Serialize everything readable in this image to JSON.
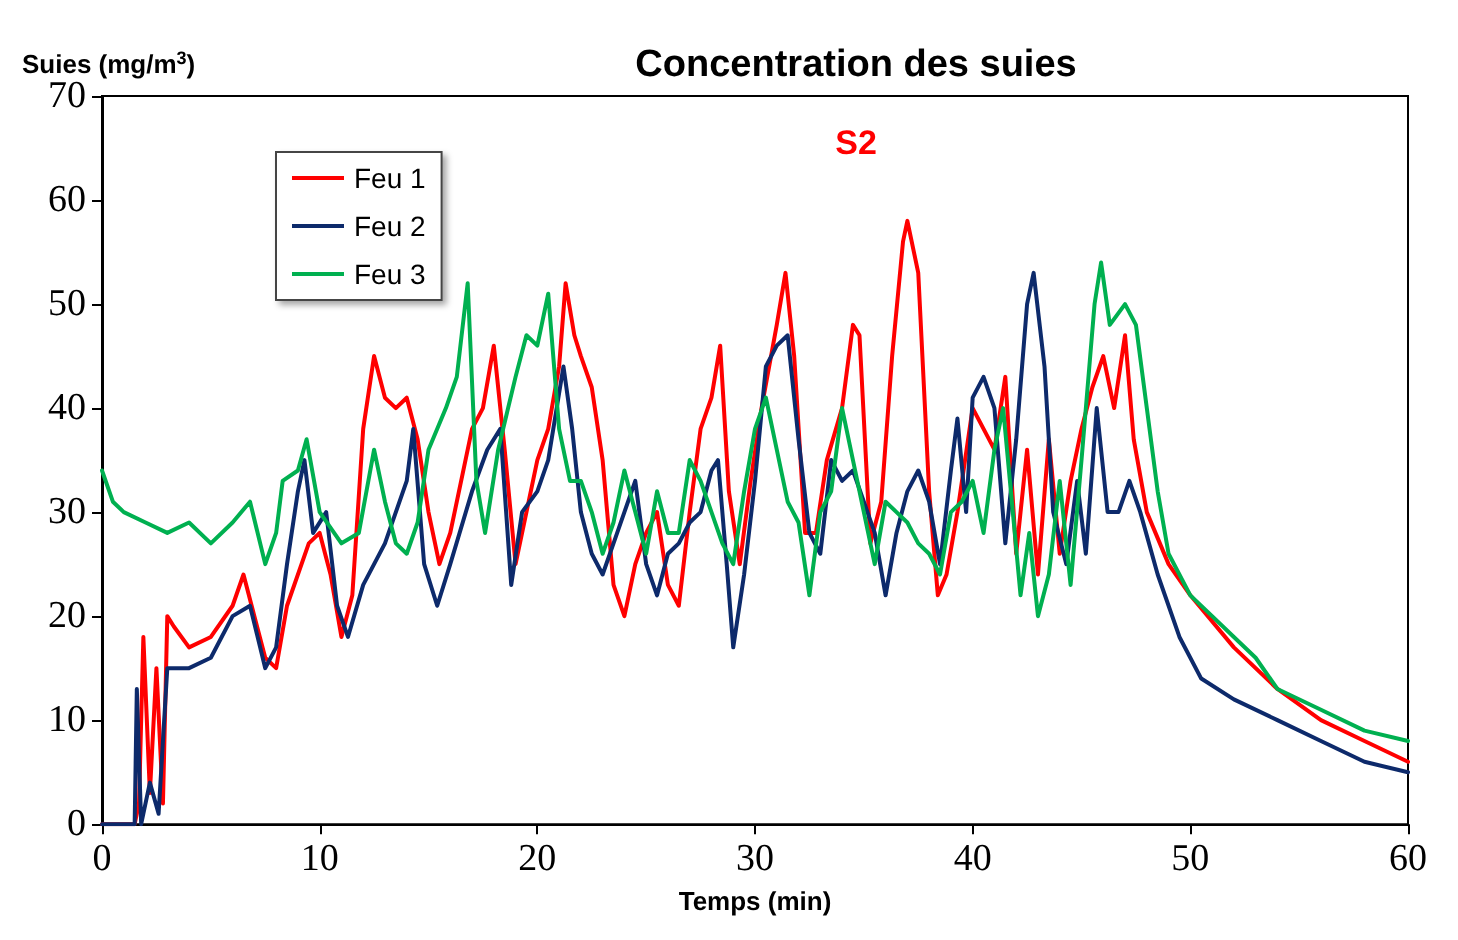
{
  "chart_data": {
    "type": "line",
    "title": "Concentration des suies",
    "subtitle": "S2",
    "xlabel": "Temps (min)",
    "ylabel": "Suies (mg/m$^{3}$)",
    "xlim": [
      0,
      60
    ],
    "ylim": [
      0,
      70
    ],
    "xticks": [
      0,
      10,
      20,
      30,
      40,
      50,
      60
    ],
    "yticks": [
      0,
      10,
      20,
      30,
      40,
      50,
      60,
      70
    ],
    "grid": false,
    "legend": "top left",
    "marker": "none",
    "line_style": "solid",
    "series": [
      {
        "name": "Feu 1",
        "color": "#ff0000",
        "x": [
          0,
          1.5,
          1.7,
          1.9,
          2.2,
          2.5,
          2.8,
          3,
          3.3,
          4,
          5,
          6,
          6.5,
          7,
          7.5,
          8,
          8.5,
          9.5,
          10,
          10.5,
          11,
          11.5,
          12,
          12.5,
          13,
          13.5,
          14,
          14.5,
          15,
          15.5,
          16,
          17,
          17.5,
          18,
          18.5,
          19,
          19.5,
          20,
          20.5,
          21,
          21.3,
          21.7,
          22,
          22.5,
          23,
          23.5,
          24,
          24.5,
          25,
          25.5,
          26,
          26.5,
          27,
          27.5,
          28,
          28.4,
          28.8,
          29.3,
          29.8,
          30.3,
          31,
          31.4,
          31.8,
          32.3,
          32.8,
          33.3,
          34,
          34.5,
          34.8,
          35.3,
          35.8,
          36.3,
          36.8,
          37,
          37.5,
          38,
          38.4,
          38.8,
          39.3,
          40,
          40.5,
          41,
          41.5,
          42,
          42.5,
          43,
          43.5,
          44,
          44.5,
          45,
          45.5,
          46,
          46.5,
          47,
          47.4,
          48,
          49,
          50,
          52,
          54,
          56,
          58,
          60
        ],
        "values": [
          0,
          0,
          2,
          18,
          3,
          15,
          2,
          20,
          19,
          17,
          18,
          21,
          24,
          20,
          16,
          15,
          21,
          27,
          28,
          24,
          18,
          22,
          38,
          45,
          41,
          40,
          41,
          37,
          30,
          25,
          28,
          38,
          40,
          46,
          36,
          25,
          30,
          35,
          38,
          44,
          52,
          47,
          45,
          42,
          35,
          23,
          20,
          25,
          28,
          30,
          23,
          21,
          30,
          38,
          41,
          46,
          32,
          25,
          33,
          40,
          48,
          53,
          45,
          28,
          28,
          35,
          40,
          48,
          47,
          27,
          31,
          45,
          56,
          58,
          53,
          32,
          22,
          24,
          30,
          40,
          38,
          36,
          43,
          26,
          36,
          24,
          37,
          26,
          33,
          38,
          42,
          45,
          40,
          47,
          37,
          30,
          25,
          22,
          17,
          13,
          10,
          8,
          6
        ]
      },
      {
        "name": "Feu 2",
        "color": "#0d2a6b",
        "x": [
          0,
          1.5,
          1.6,
          1.8,
          2.2,
          2.6,
          3,
          4,
          5,
          6,
          6.8,
          7.5,
          8,
          8.5,
          9,
          9.3,
          9.7,
          10.3,
          10.8,
          11.3,
          12,
          13,
          14,
          14.3,
          14.8,
          15.4,
          16,
          17,
          17.7,
          18.3,
          18.8,
          19.3,
          20,
          20.5,
          21.2,
          21.6,
          22,
          22.5,
          23,
          23.5,
          24,
          24.5,
          25,
          25.5,
          26,
          26.5,
          27,
          27.5,
          28,
          28.3,
          28.7,
          29,
          29.5,
          30,
          30.5,
          31,
          31.5,
          32,
          32.5,
          33,
          33.5,
          34,
          34.5,
          35,
          35.5,
          36,
          36.5,
          37,
          37.5,
          38,
          38.5,
          39,
          39.3,
          39.7,
          40,
          40.5,
          41,
          41.5,
          42,
          42.5,
          42.8,
          43.3,
          43.7,
          44.3,
          44.8,
          45.2,
          45.7,
          46.2,
          46.7,
          47.2,
          47.7,
          48.5,
          49.5,
          50.5,
          52,
          54,
          56,
          58,
          60
        ],
        "values": [
          0,
          0,
          13,
          0,
          4,
          1,
          15,
          15,
          16,
          20,
          21,
          15,
          17,
          25,
          32,
          35,
          28,
          30,
          21,
          18,
          23,
          27,
          33,
          38,
          25,
          21,
          25,
          32,
          36,
          38,
          23,
          30,
          32,
          35,
          44,
          38,
          30,
          26,
          24,
          27,
          30,
          33,
          25,
          22,
          26,
          27,
          29,
          30,
          34,
          35,
          25,
          17,
          24,
          33,
          44,
          46,
          47,
          37,
          28,
          26,
          35,
          33,
          34,
          31,
          28,
          22,
          28,
          32,
          34,
          31,
          25,
          34,
          39,
          30,
          41,
          43,
          40,
          27,
          37,
          50,
          53,
          44,
          30,
          25,
          33,
          26,
          40,
          30,
          30,
          33,
          30,
          24,
          18,
          14,
          12,
          10,
          8,
          6,
          5
        ]
      },
      {
        "name": "Feu 3",
        "color": "#00b050",
        "x": [
          0,
          0.5,
          1,
          2,
          3,
          4,
          5,
          6,
          6.8,
          7.5,
          8,
          8.3,
          9,
          9.4,
          10,
          11,
          11.8,
          12.5,
          13,
          13.5,
          14,
          14.5,
          15,
          15.8,
          16.3,
          16.8,
          17.2,
          17.6,
          18.2,
          19,
          19.5,
          20,
          20.5,
          21,
          21.5,
          22,
          22.5,
          23,
          23.5,
          24,
          24.5,
          25,
          25.5,
          26,
          26.5,
          27,
          27.5,
          28,
          28.5,
          29,
          29.5,
          30,
          30.5,
          31,
          31.5,
          32,
          32.5,
          33,
          33.5,
          34,
          34.5,
          35,
          35.5,
          36,
          36.5,
          37,
          37.5,
          38,
          38.5,
          39,
          39.5,
          40,
          40.5,
          41,
          41.4,
          41.8,
          42.2,
          42.6,
          43,
          43.5,
          44,
          44.5,
          45,
          45.6,
          45.9,
          46.3,
          47,
          47.5,
          48,
          48.5,
          49,
          50,
          51,
          52,
          53,
          54,
          56,
          58,
          60
        ],
        "values": [
          34,
          31,
          30,
          29,
          28,
          29,
          27,
          29,
          31,
          25,
          28,
          33,
          34,
          37,
          30,
          27,
          28,
          36,
          31,
          27,
          26,
          29,
          36,
          40,
          43,
          52,
          33,
          28,
          36,
          43,
          47,
          46,
          51,
          38,
          33,
          33,
          30,
          26,
          29,
          34,
          30,
          26,
          32,
          28,
          28,
          35,
          33,
          30,
          27,
          25,
          32,
          38,
          41,
          36,
          31,
          29,
          22,
          30,
          32,
          40,
          35,
          30,
          25,
          31,
          30,
          29,
          27,
          26,
          24,
          30,
          31,
          33,
          28,
          36,
          40,
          31,
          22,
          28,
          20,
          24,
          33,
          23,
          35,
          50,
          54,
          48,
          50,
          48,
          40,
          32,
          26,
          22,
          20,
          18,
          16,
          13,
          11,
          9,
          8
        ]
      }
    ]
  }
}
